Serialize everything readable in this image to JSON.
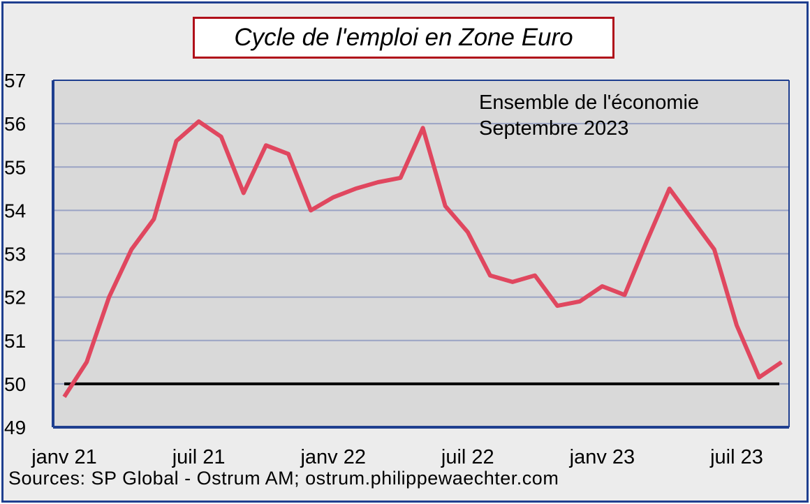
{
  "chart_data": {
    "type": "line",
    "title": "Cycle de l'emploi en Zone Euro",
    "annotation": [
      "Ensemble de l'économie",
      "Septembre 2023"
    ],
    "source": "Sources: SP Global - Ostrum AM; ostrum.philippewaechter.com",
    "ylim": [
      49,
      57
    ],
    "yticks": [
      "49",
      "50",
      "51",
      "52",
      "53",
      "54",
      "55",
      "56",
      "57"
    ],
    "xticks": [
      {
        "label": "janv 21",
        "index": 0
      },
      {
        "label": "juil 21",
        "index": 6
      },
      {
        "label": "janv 22",
        "index": 12
      },
      {
        "label": "juil 22",
        "index": 18
      },
      {
        "label": "janv 23",
        "index": 24
      },
      {
        "label": "juil 23",
        "index": 30
      }
    ],
    "reference_line": 50,
    "grid": true,
    "series": [
      {
        "color": "#e0475f",
        "values": [
          49.7,
          50.5,
          52.0,
          53.1,
          53.8,
          55.6,
          56.05,
          55.7,
          54.4,
          55.5,
          55.3,
          54.0,
          54.3,
          54.5,
          54.65,
          54.75,
          55.9,
          54.1,
          53.5,
          52.5,
          52.35,
          52.5,
          51.8,
          51.9,
          52.25,
          52.05,
          53.3,
          54.5,
          53.8,
          53.1,
          51.35,
          50.15,
          50.5
        ]
      }
    ]
  },
  "colors": {
    "plot_bg": "#d9d9d9",
    "gridline": "#9aa3c4",
    "axis": "#1f3f8f",
    "ref_line": "#000000",
    "title_border": "#b0101a"
  }
}
